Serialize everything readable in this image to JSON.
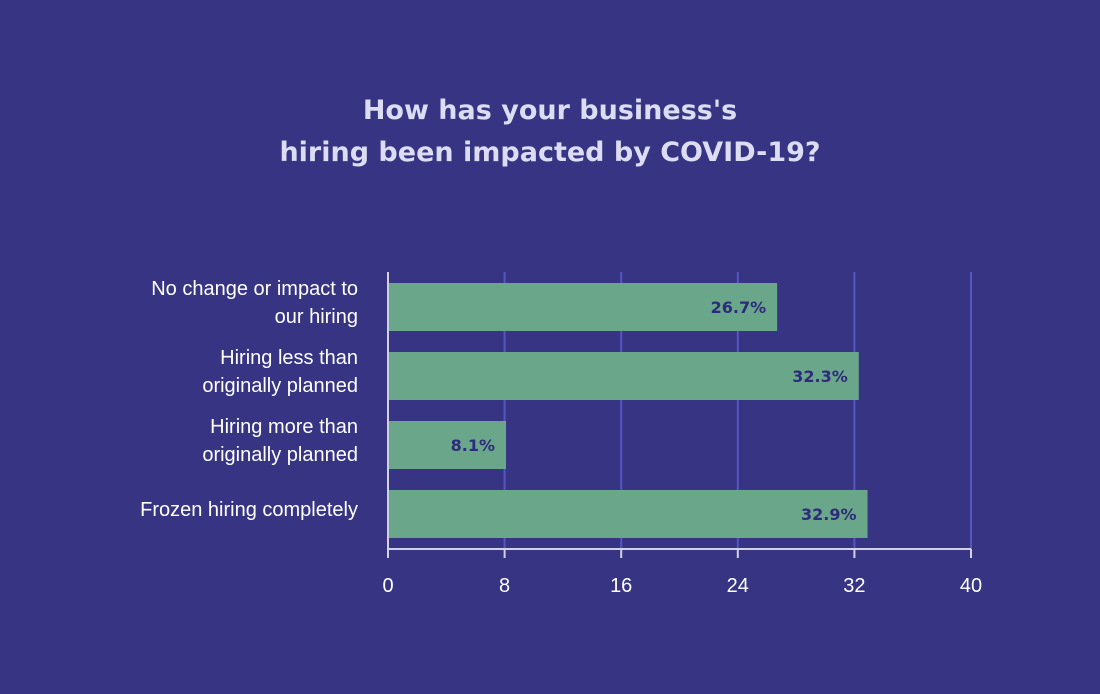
{
  "colors": {
    "background": "#363483",
    "bar": "#6aa68a",
    "gridline": "#5a5ac8",
    "axis": "#d2d2e6",
    "text": "#ffffff",
    "title": "#dcdcf2",
    "value_label": "#2e2a7d"
  },
  "chart_data": {
    "type": "bar",
    "orientation": "horizontal",
    "title": [
      "How has your business's",
      "hiring been impacted by COVID-19?"
    ],
    "categories": [
      [
        "No change or impact to",
        "our hiring"
      ],
      [
        "Hiring less than",
        "originally planned"
      ],
      [
        "Hiring more than",
        "originally planned"
      ],
      [
        "Frozen hiring completely"
      ]
    ],
    "values": [
      26.7,
      32.3,
      8.1,
      32.9
    ],
    "value_labels": [
      "26.7%",
      "32.3%",
      "8.1%",
      "32.9%"
    ],
    "xlim": [
      0,
      40
    ],
    "xticks": [
      0,
      8,
      16,
      24,
      32,
      40
    ],
    "xtick_labels": [
      "0",
      "8",
      "16",
      "24",
      "32",
      "40"
    ],
    "grid": true,
    "legend": false
  }
}
